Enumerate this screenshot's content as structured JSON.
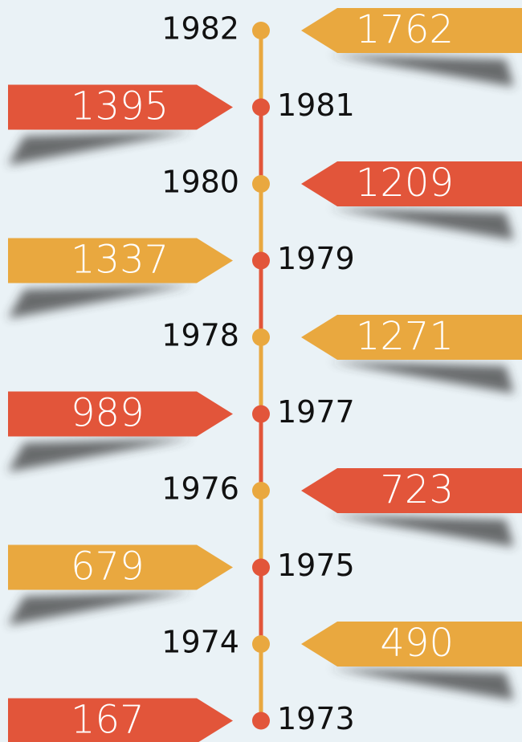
{
  "chart_data": {
    "type": "timeline",
    "categories": [
      "1982",
      "1981",
      "1980",
      "1979",
      "1978",
      "1977",
      "1976",
      "1975",
      "1974",
      "1973"
    ],
    "values": [
      1762,
      1395,
      1209,
      1337,
      1271,
      989,
      723,
      679,
      490,
      167
    ],
    "colors": [
      "#e9a83f",
      "#e2553a",
      "#e2553a",
      "#e9a83f",
      "#e9a83f",
      "#e2553a",
      "#e2553a",
      "#e9a83f",
      "#e9a83f",
      "#e2553a"
    ],
    "marker_colors": [
      "#e9a83f",
      "#e2553a",
      "#e9a83f",
      "#e2553a",
      "#e9a83f",
      "#e2553a",
      "#e9a83f",
      "#e2553a",
      "#e9a83f",
      "#e2553a"
    ]
  }
}
